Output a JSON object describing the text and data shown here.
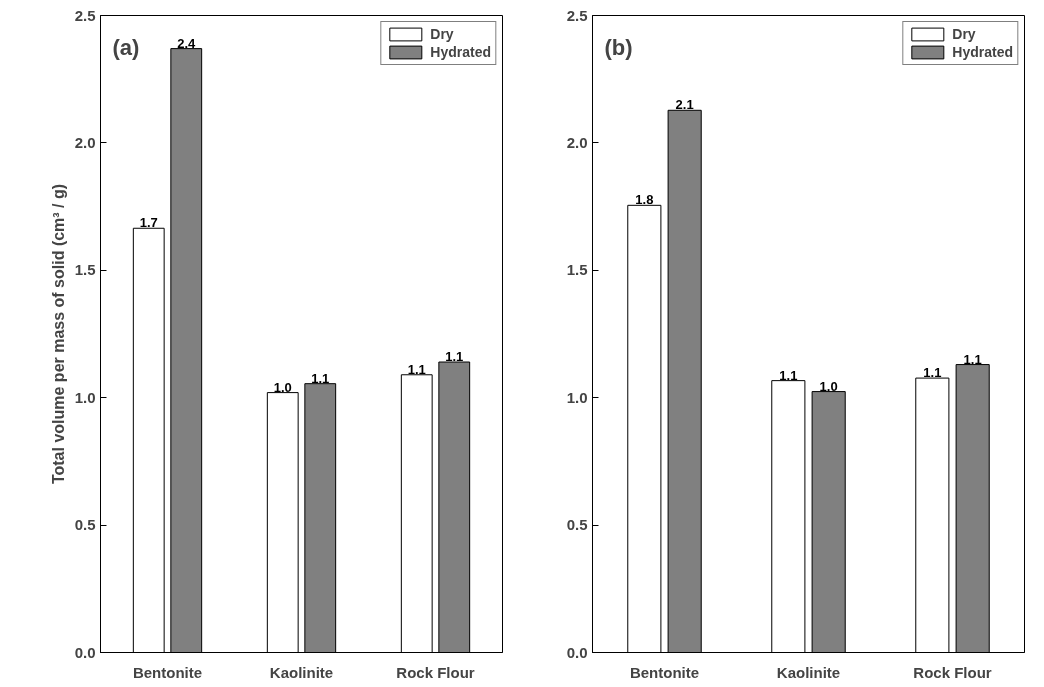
{
  "chart_data": [
    {
      "type": "bar",
      "annotations": [
        "(a)"
      ],
      "ylabel": "Total volume per mass of solid (cm³ / g)",
      "categories": [
        "Bentonite",
        "Kaolinite",
        "Rock Flour"
      ],
      "series": [
        {
          "name": "Dry",
          "color": "#ffffff",
          "values": [
            1.665,
            1.02,
            1.09
          ],
          "value_labels": [
            "1.7",
            "1.0",
            "1.1"
          ]
        },
        {
          "name": "Hydrated",
          "color": "#808080",
          "values": [
            2.37,
            1.055,
            1.14
          ],
          "value_labels": [
            "2.4",
            "1.1",
            "1.1"
          ]
        }
      ],
      "ylim": [
        0,
        2.5
      ],
      "yticks": [
        {
          "value": 0,
          "label": "0.0"
        },
        {
          "value": 0.5,
          "label": "0.5"
        },
        {
          "value": 1,
          "label": "1.0"
        },
        {
          "value": 1.5,
          "label": "1.5"
        },
        {
          "value": 2,
          "label": "2.0"
        },
        {
          "value": 2.5,
          "label": "2.5"
        }
      ],
      "legend": "top right",
      "grid": false
    },
    {
      "type": "bar",
      "annotations": [
        "(b)"
      ],
      "categories": [
        "Bentonite",
        "Kaolinite",
        "Rock Flour"
      ],
      "series": [
        {
          "name": "Dry",
          "color": "#ffffff",
          "values": [
            1.755,
            1.067,
            1.077
          ],
          "value_labels": [
            "1.8",
            "1.1",
            "1.1"
          ]
        },
        {
          "name": "Hydrated",
          "color": "#808080",
          "values": [
            2.128,
            1.024,
            1.13
          ],
          "value_labels": [
            "2.1",
            "1.0",
            "1.1"
          ]
        }
      ],
      "ylim": [
        0,
        2.5
      ],
      "yticks": [
        {
          "value": 0,
          "label": "0.0"
        },
        {
          "value": 0.5,
          "label": "0.5"
        },
        {
          "value": 1,
          "label": "1.0"
        },
        {
          "value": 1.5,
          "label": "1.5"
        },
        {
          "value": 2,
          "label": "2.0"
        },
        {
          "value": 2.5,
          "label": "2.5"
        }
      ],
      "legend": "top right",
      "grid": false
    }
  ]
}
